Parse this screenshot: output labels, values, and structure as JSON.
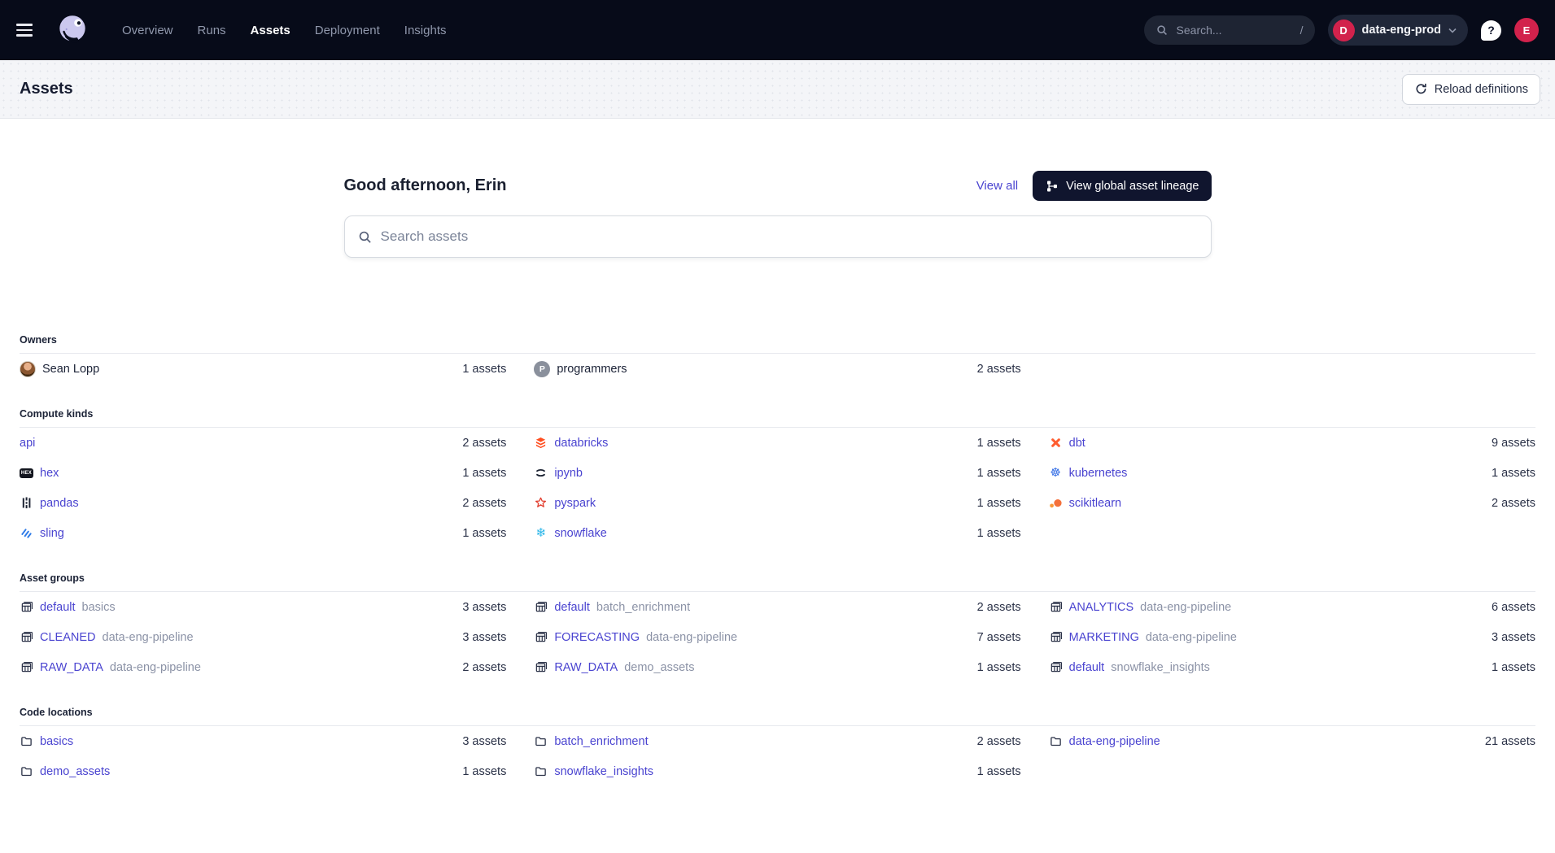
{
  "nav": {
    "items": [
      {
        "label": "Overview",
        "active": false
      },
      {
        "label": "Runs",
        "active": false
      },
      {
        "label": "Assets",
        "active": true
      },
      {
        "label": "Deployment",
        "active": false
      },
      {
        "label": "Insights",
        "active": false
      }
    ],
    "search_placeholder": "Search...",
    "search_shortcut": "/",
    "deployment_initial": "D",
    "deployment_name": "data-eng-prod",
    "help_glyph": "?",
    "user_initial": "E"
  },
  "page_header": {
    "title": "Assets",
    "reload_label": "Reload definitions"
  },
  "hero": {
    "greeting": "Good afternoon, Erin",
    "view_all": "View all",
    "lineage_label": "View global asset lineage",
    "search_placeholder": "Search assets"
  },
  "colors": {
    "accent_link": "#4a44d0",
    "crimson": "#d2224c",
    "nav_bg": "#070b19",
    "dark_button": "#10152e",
    "count_text": "#2a3147"
  },
  "sections": [
    {
      "id": "owners",
      "title": "Owners",
      "rows": [
        [
          {
            "kind": "owner",
            "avatar": "photo",
            "label": "Sean Lopp",
            "count": "1 assets"
          },
          {
            "kind": "owner",
            "avatar": "initial",
            "avatar_text": "P",
            "label": "programmers",
            "count": "2 assets"
          },
          null
        ]
      ]
    },
    {
      "id": "compute-kinds",
      "title": "Compute kinds",
      "rows": [
        [
          {
            "kind": "link",
            "label": "api",
            "count": "2 assets"
          },
          {
            "kind": "link",
            "icon": "databricks-icon",
            "label": "databricks",
            "count": "1 assets"
          },
          {
            "kind": "link",
            "icon": "dbt-icon",
            "label": "dbt",
            "count": "9 assets"
          }
        ],
        [
          {
            "kind": "link",
            "icon": "hex-icon",
            "label": "hex",
            "count": "1 assets"
          },
          {
            "kind": "link",
            "icon": "ipynb-icon",
            "label": "ipynb",
            "count": "1 assets"
          },
          {
            "kind": "link",
            "icon": "kubernetes-icon",
            "label": "kubernetes",
            "count": "1 assets"
          }
        ],
        [
          {
            "kind": "link",
            "icon": "pandas-icon",
            "label": "pandas",
            "count": "2 assets"
          },
          {
            "kind": "link",
            "icon": "pyspark-icon",
            "label": "pyspark",
            "count": "1 assets"
          },
          {
            "kind": "link",
            "icon": "scikitlearn-icon",
            "label": "scikitlearn",
            "count": "2 assets"
          }
        ],
        [
          {
            "kind": "link",
            "icon": "sling-icon",
            "label": "sling",
            "count": "1 assets"
          },
          {
            "kind": "link",
            "icon": "snowflake-icon",
            "label": "snowflake",
            "count": "1 assets"
          },
          null
        ]
      ]
    },
    {
      "id": "asset-groups",
      "title": "Asset groups",
      "rows": [
        [
          {
            "kind": "link",
            "icon": "table-icon",
            "label": "default",
            "secondary": "basics",
            "count": "3 assets"
          },
          {
            "kind": "link",
            "icon": "table-icon",
            "label": "default",
            "secondary": "batch_enrichment",
            "count": "2 assets"
          },
          {
            "kind": "link",
            "icon": "table-icon",
            "label": "ANALYTICS",
            "secondary": "data-eng-pipeline",
            "count": "6 assets"
          }
        ],
        [
          {
            "kind": "link",
            "icon": "table-icon",
            "label": "CLEANED",
            "secondary": "data-eng-pipeline",
            "count": "3 assets"
          },
          {
            "kind": "link",
            "icon": "table-icon",
            "label": "FORECASTING",
            "secondary": "data-eng-pipeline",
            "count": "7 assets"
          },
          {
            "kind": "link",
            "icon": "table-icon",
            "label": "MARKETING",
            "secondary": "data-eng-pipeline",
            "count": "3 assets"
          }
        ],
        [
          {
            "kind": "link",
            "icon": "table-icon",
            "label": "RAW_DATA",
            "secondary": "data-eng-pipeline",
            "count": "2 assets"
          },
          {
            "kind": "link",
            "icon": "table-icon",
            "label": "RAW_DATA",
            "secondary": "demo_assets",
            "count": "1 assets"
          },
          {
            "kind": "link",
            "icon": "table-icon",
            "label": "default",
            "secondary": "snowflake_insights",
            "count": "1 assets"
          }
        ]
      ]
    },
    {
      "id": "code-locations",
      "title": "Code locations",
      "rows": [
        [
          {
            "kind": "link",
            "icon": "folder-icon",
            "label": "basics",
            "count": "3 assets"
          },
          {
            "kind": "link",
            "icon": "folder-icon",
            "label": "batch_enrichment",
            "count": "2 assets"
          },
          {
            "kind": "link",
            "icon": "folder-icon",
            "label": "data-eng-pipeline",
            "count": "21 assets"
          }
        ],
        [
          {
            "kind": "link",
            "icon": "folder-icon",
            "label": "demo_assets",
            "count": "1 assets"
          },
          {
            "kind": "link",
            "icon": "folder-icon",
            "label": "snowflake_insights",
            "count": "1 assets"
          },
          null
        ]
      ]
    }
  ]
}
